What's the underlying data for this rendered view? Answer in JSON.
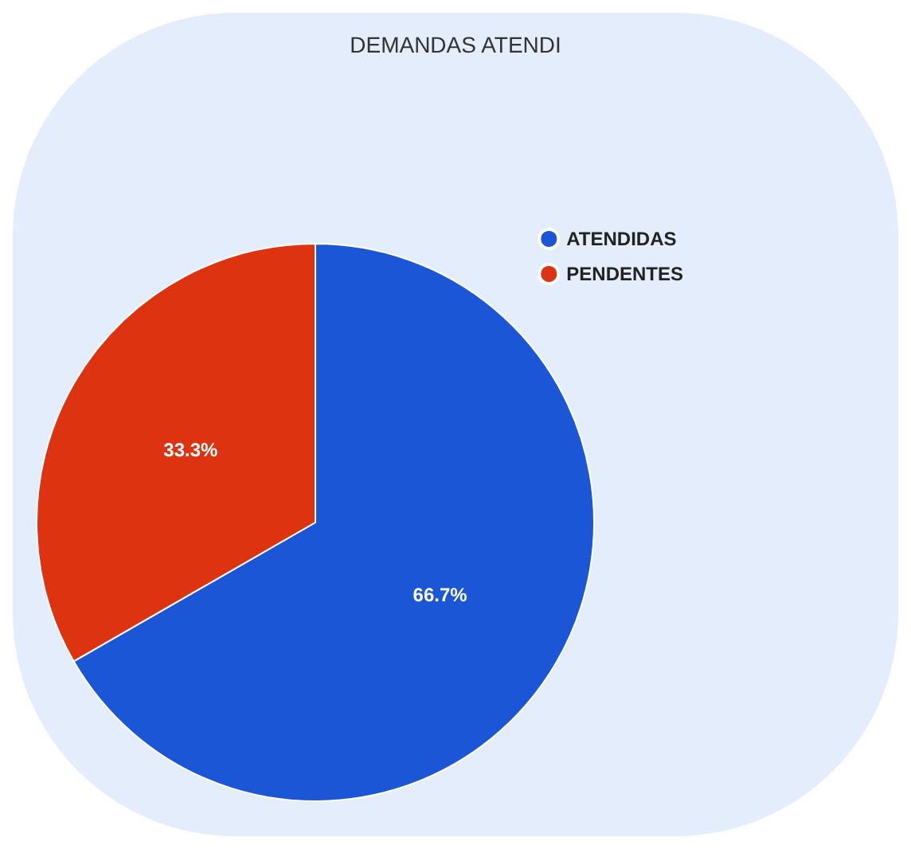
{
  "chart_data": {
    "type": "pie",
    "title": "DEMANDAS ATENDI",
    "categories": [
      "ATENDIDAS",
      "PENDENTES"
    ],
    "values": [
      66.7,
      33.3
    ],
    "colors": [
      "#1a56d6",
      "#dd3311"
    ],
    "value_labels": [
      "66.7%",
      "33.3%"
    ],
    "legend": "top right"
  }
}
